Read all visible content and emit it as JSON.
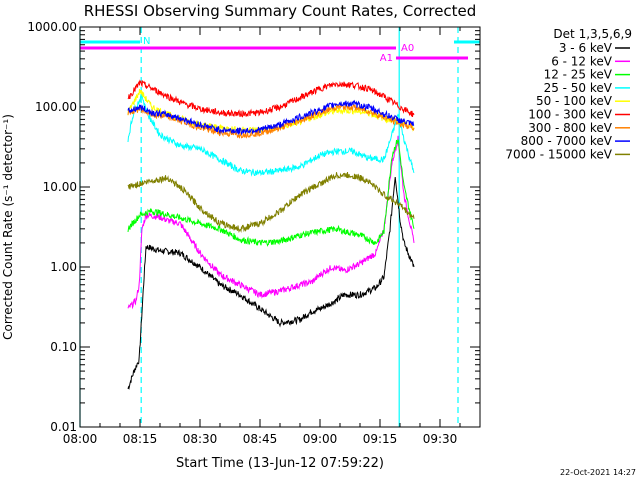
{
  "chart_data": {
    "type": "line",
    "title": "RHESSI Observing Summary Count Rates, Corrected",
    "xlabel": "Start Time (13-Jun-12 07:59:22)",
    "ylabel": "Corrected Count Rate (s⁻¹ detector⁻¹)",
    "x_unit": "minutes after 08:00",
    "xlim": [
      0,
      100
    ],
    "ylim": [
      0.01,
      1000
    ],
    "yscale": "log",
    "x_ticks": [
      {
        "v": 0,
        "label": "08:00"
      },
      {
        "v": 15,
        "label": "08:15"
      },
      {
        "v": 30,
        "label": "08:30"
      },
      {
        "v": 45,
        "label": "08:45"
      },
      {
        "v": 60,
        "label": "09:00"
      },
      {
        "v": 75,
        "label": "09:15"
      },
      {
        "v": 90,
        "label": "09:30"
      }
    ],
    "y_ticks": [
      {
        "v": 0.01,
        "label": "0.01"
      },
      {
        "v": 0.1,
        "label": "0.10"
      },
      {
        "v": 1,
        "label": "1.00"
      },
      {
        "v": 10,
        "label": "10.00"
      },
      {
        "v": 100,
        "label": "100.00"
      },
      {
        "v": 1000,
        "label": "1000.00"
      }
    ],
    "legend_title": "Det 1,3,5,6,9",
    "legend_placement": "right of plot, top",
    "series": [
      {
        "name": "3 - 6 keV",
        "color": "#000000",
        "x": [
          12,
          13.5,
          14.8,
          15.8,
          16.5,
          20,
          25,
          30,
          35,
          40,
          45,
          50,
          55,
          58,
          60,
          64,
          66,
          70,
          74,
          76,
          77.5,
          78.8,
          80,
          81,
          83.5
        ],
        "y": [
          0.03,
          0.05,
          0.07,
          0.5,
          1.8,
          1.6,
          1.5,
          1.0,
          0.6,
          0.45,
          0.3,
          0.2,
          0.22,
          0.28,
          0.3,
          0.38,
          0.45,
          0.45,
          0.55,
          0.75,
          3,
          14,
          4,
          2,
          1
        ]
      },
      {
        "name": "6 - 12 keV",
        "color": "#ff00ff",
        "x": [
          12,
          14,
          14.8,
          15.5,
          16.5,
          20,
          22,
          25,
          30,
          35,
          40,
          45,
          50,
          55,
          58,
          60,
          63,
          66,
          70,
          74,
          76,
          78,
          79.5,
          81,
          83.5
        ],
        "y": [
          0.3,
          0.38,
          0.6,
          3,
          4.5,
          4.2,
          3.8,
          3.5,
          1.5,
          0.8,
          0.6,
          0.45,
          0.5,
          0.6,
          0.65,
          0.8,
          1.0,
          0.9,
          1.1,
          1.5,
          3,
          20,
          40,
          8,
          2
        ]
      },
      {
        "name": "12 - 25 keV",
        "color": "#00ff00",
        "x": [
          12,
          15,
          18,
          22,
          26,
          30,
          35,
          40,
          45,
          50,
          55,
          60,
          64,
          66,
          70,
          74,
          76,
          78,
          79.5,
          81,
          83.5
        ],
        "y": [
          3,
          4.5,
          5,
          4.5,
          4,
          3.5,
          3,
          2.2,
          2.0,
          2.1,
          2.5,
          2.8,
          3.0,
          2.8,
          2.5,
          2.0,
          2.8,
          25,
          40,
          10,
          3
        ]
      },
      {
        "name": "25 - 50 keV",
        "color": "#00ffff",
        "x": [
          12,
          13.5,
          15.5,
          17,
          20,
          25,
          30,
          35,
          40,
          45,
          50,
          55,
          60,
          64,
          68,
          72,
          76,
          78,
          79.5,
          81,
          83.5
        ],
        "y": [
          40,
          90,
          140,
          80,
          45,
          33,
          30,
          22,
          16,
          15,
          16,
          18,
          25,
          28,
          28,
          23,
          22,
          45,
          80,
          40,
          15
        ]
      },
      {
        "name": "50 - 100 keV",
        "color": "#ffff00",
        "x": [
          12,
          15,
          18,
          22,
          26,
          30,
          35,
          40,
          45,
          50,
          55,
          60,
          64,
          68,
          72,
          76,
          80,
          83.5
        ],
        "y": [
          85,
          160,
          100,
          80,
          70,
          60,
          55,
          52,
          52,
          55,
          65,
          80,
          90,
          90,
          85,
          72,
          65,
          55
        ]
      },
      {
        "name": "100 - 300 keV",
        "color": "#ff0000",
        "x": [
          12,
          15,
          18,
          22,
          26,
          30,
          35,
          40,
          45,
          50,
          55,
          60,
          64,
          68,
          72,
          76,
          80,
          83.5
        ],
        "y": [
          130,
          200,
          170,
          135,
          110,
          95,
          85,
          82,
          85,
          100,
          130,
          170,
          195,
          190,
          170,
          135,
          100,
          80
        ]
      },
      {
        "name": "300 - 800 keV",
        "color": "#ff8000",
        "x": [
          12,
          15,
          18,
          22,
          26,
          30,
          35,
          40,
          45,
          50,
          55,
          60,
          64,
          68,
          72,
          76,
          80,
          83.5
        ],
        "y": [
          85,
          95,
          80,
          75,
          65,
          55,
          48,
          45,
          47,
          55,
          68,
          85,
          100,
          100,
          90,
          75,
          62,
          55
        ]
      },
      {
        "name": "800 - 7000 keV",
        "color": "#0000ff",
        "x": [
          12,
          15,
          18,
          22,
          26,
          30,
          35,
          40,
          45,
          50,
          55,
          60,
          64,
          68,
          72,
          76,
          80,
          83.5
        ],
        "y": [
          88,
          100,
          85,
          80,
          70,
          60,
          52,
          50,
          52,
          60,
          75,
          92,
          110,
          110,
          100,
          82,
          68,
          60
        ]
      },
      {
        "name": "7000 - 15000 keV",
        "color": "#808000",
        "x": [
          12,
          15,
          18,
          22,
          26,
          30,
          35,
          40,
          45,
          50,
          55,
          60,
          64,
          68,
          72,
          76,
          80,
          83.5
        ],
        "y": [
          10,
          11,
          12,
          13,
          9,
          5.5,
          3.5,
          3,
          3.5,
          5,
          8,
          11,
          14,
          14,
          12,
          8,
          6,
          4
        ]
      }
    ],
    "annotations": [
      {
        "label": "N",
        "kind": "night",
        "color": "#00ffff",
        "x_start": 0,
        "x_end": 15
      },
      {
        "label": "N",
        "kind": "night",
        "color": "#00ffff",
        "x_start": 93.5,
        "x_end": 100
      },
      {
        "label": "A0",
        "kind": "attenuator",
        "color": "#ff00ff",
        "x_start": 0,
        "x_end": 79
      },
      {
        "label": "A1",
        "kind": "attenuator",
        "color": "#ff00ff",
        "x_start": 79,
        "x_end": 97
      }
    ],
    "vlines": [
      {
        "x": 0,
        "color": "#00ffff",
        "style": "solid"
      },
      {
        "x": 15.3,
        "color": "#00ffff",
        "style": "dashed"
      },
      {
        "x": 79.8,
        "color": "#00ffff",
        "style": "solid"
      },
      {
        "x": 94.5,
        "color": "#00ffff",
        "style": "dashed"
      }
    ]
  },
  "footer": {
    "date": "22-Oct-2021 14:27"
  }
}
